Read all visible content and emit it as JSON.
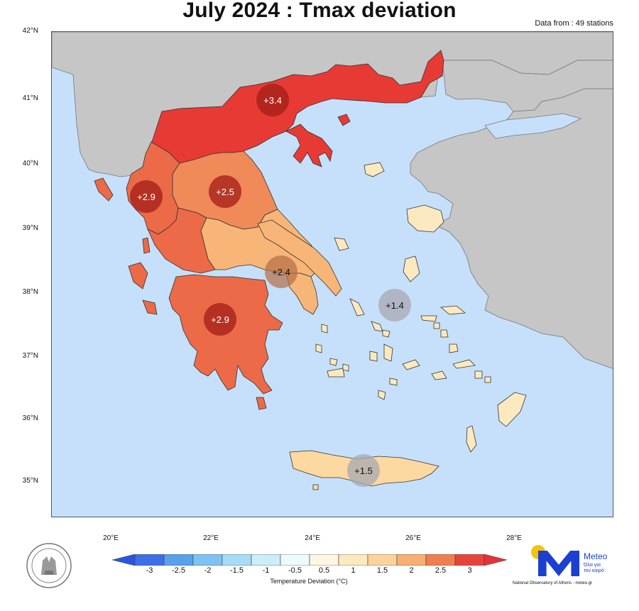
{
  "header": {
    "title": "July 2024 : Tmax deviation",
    "stations": "Data from : 49 stations"
  },
  "map": {
    "lat_labels": [
      "42°N",
      "41°N",
      "40°N",
      "39°N",
      "38°N",
      "37°N",
      "36°N",
      "35°N"
    ],
    "lon_labels": [
      "20°E",
      "22°E",
      "24°E",
      "26°E",
      "28°E"
    ],
    "regions": [
      {
        "name": "Macedonia-Thrace",
        "deviation": "+3.4",
        "class": "hot"
      },
      {
        "name": "Epirus",
        "deviation": "+2.9",
        "class": "hot"
      },
      {
        "name": "Thessaly",
        "deviation": "+2.5",
        "class": "hot"
      },
      {
        "name": "Central Greece",
        "deviation": "+2.4",
        "class": "mild"
      },
      {
        "name": "Peloponnese",
        "deviation": "+2.9",
        "class": "hot"
      },
      {
        "name": "Aegean Islands",
        "deviation": "+1.4",
        "class": "cool"
      },
      {
        "name": "Crete",
        "deviation": "+1.5",
        "class": "cool"
      }
    ],
    "colors": {
      "sea": "#c6e0fb",
      "land_other": "#c6c6c6",
      "dev_3_4": "#e83a34",
      "dev_2_9": "#ec6a48",
      "dev_2_5": "#f08a58",
      "dev_2_4": "#f7b677",
      "dev_1_5": "#fcd9a0",
      "dev_1_4": "#fde9bf"
    }
  },
  "colorbar": {
    "ticks": [
      "-3",
      "-2.5",
      "-2",
      "-1.5",
      "-1",
      "-0.5",
      "0.5",
      "1",
      "1.5",
      "2",
      "2.5",
      "3"
    ],
    "title": "Temperature Deviation (°C)",
    "colors": [
      "#3f6fe8",
      "#5aa0ec",
      "#7fc2f1",
      "#a6dcf5",
      "#cbeefa",
      "#eefbfe",
      "#fff6e3",
      "#fde9bf",
      "#fcd39b",
      "#f8ae74",
      "#f07e52",
      "#e8433a"
    ]
  },
  "logo": {
    "brand": "Meteo",
    "tagline_1": "Όλα για",
    "tagline_2": "τον καιρό",
    "footer": "National Observatory of Athens - meteo.gr"
  }
}
